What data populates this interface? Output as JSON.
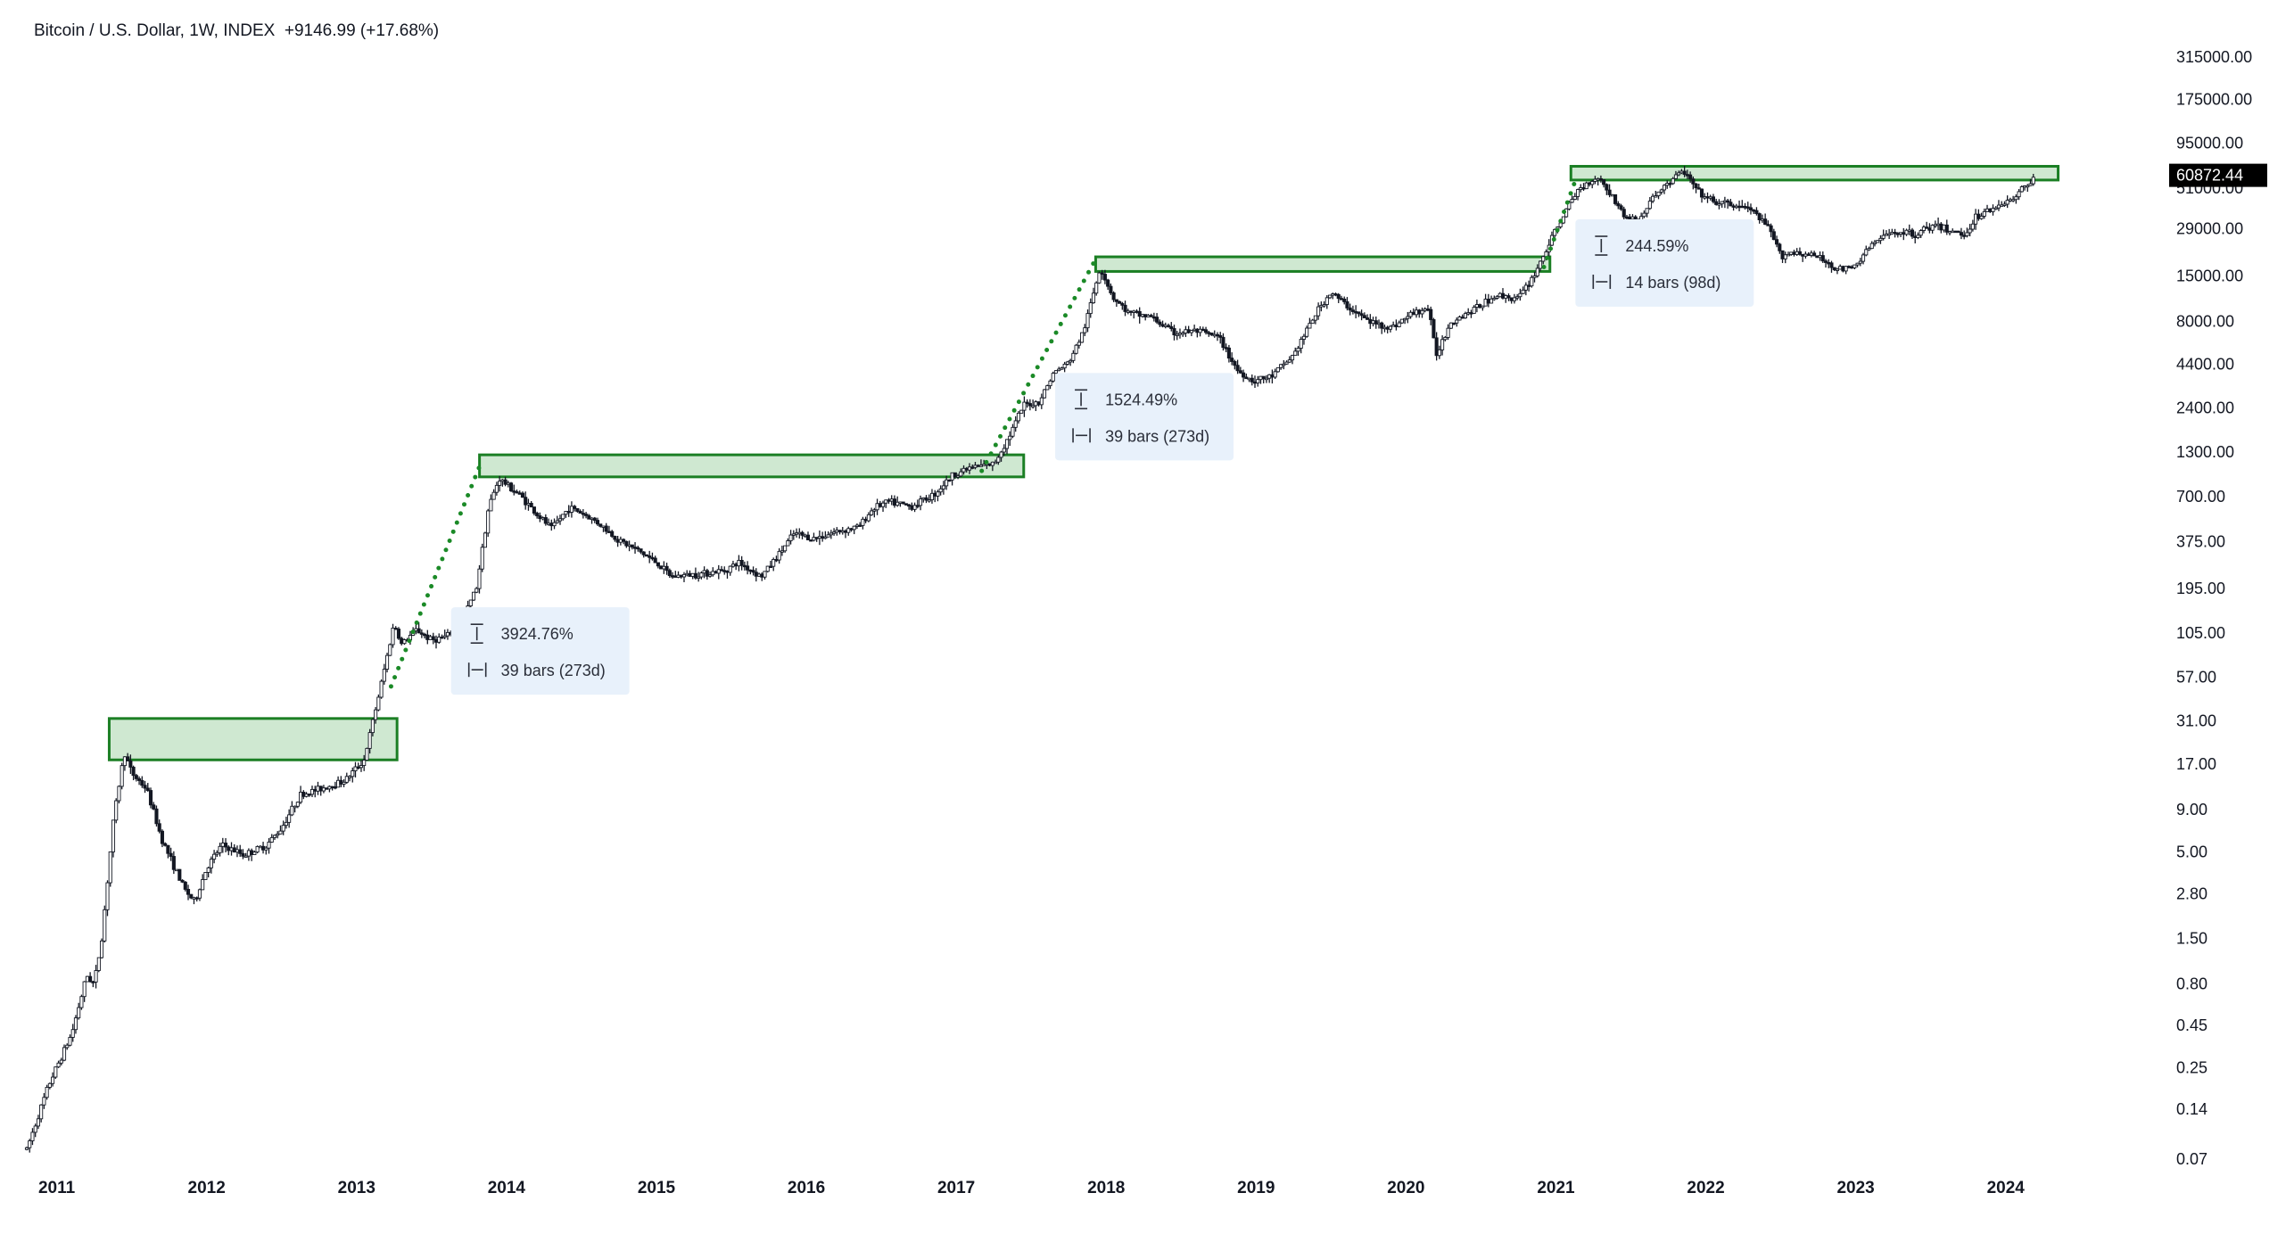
{
  "header": {
    "symbol": "Bitcoin / U.S. Dollar, 1W, INDEX",
    "change": "+9146.99 (+17.68%)"
  },
  "colors": {
    "candle": "#131722",
    "zone_fill": "#cfe8d1",
    "zone_stroke": "#1b7f24",
    "dots": "#1b8a27",
    "annotation_bg": "#e8f1fb",
    "annotation_text": "#2a2e39",
    "axis_text": "#131722",
    "price_tag_bg": "#000000",
    "price_tag_text": "#ffffff"
  },
  "chart_data": {
    "type": "candlestick",
    "scale": "log",
    "grid": false,
    "ylim": [
      0.07,
      315000
    ],
    "xlim": [
      2010.8,
      2024.9
    ],
    "x_ticks": [
      "2011",
      "2012",
      "2013",
      "2014",
      "2015",
      "2016",
      "2017",
      "2018",
      "2019",
      "2020",
      "2021",
      "2022",
      "2023",
      "2024"
    ],
    "y_ticks": [
      "315000.00",
      "175000.00",
      "95000.00",
      "51000.00",
      "29000.00",
      "15000.00",
      "8000.00",
      "4400.00",
      "2400.00",
      "1300.00",
      "700.00",
      "375.00",
      "195.00",
      "105.00",
      "57.00",
      "31.00",
      "17.00",
      "9.00",
      "5.00",
      "2.80",
      "1.50",
      "0.80",
      "0.45",
      "0.25",
      "0.14",
      "0.07"
    ],
    "last_price": "60872.44",
    "price_path": [
      [
        2010.8,
        0.08
      ],
      [
        2010.95,
        0.2
      ],
      [
        2011.1,
        0.4
      ],
      [
        2011.2,
        0.9
      ],
      [
        2011.25,
        0.8
      ],
      [
        2011.3,
        1.5
      ],
      [
        2011.38,
        8
      ],
      [
        2011.45,
        20
      ],
      [
        2011.5,
        15
      ],
      [
        2011.6,
        12
      ],
      [
        2011.7,
        6
      ],
      [
        2011.85,
        3
      ],
      [
        2011.92,
        2.5
      ],
      [
        2012.0,
        4
      ],
      [
        2012.1,
        5.5
      ],
      [
        2012.25,
        4.8
      ],
      [
        2012.4,
        5.5
      ],
      [
        2012.5,
        7
      ],
      [
        2012.62,
        11
      ],
      [
        2012.75,
        12
      ],
      [
        2012.92,
        13.5
      ],
      [
        2013.05,
        18
      ],
      [
        2013.15,
        45
      ],
      [
        2013.25,
        120
      ],
      [
        2013.3,
        90
      ],
      [
        2013.4,
        110
      ],
      [
        2013.5,
        95
      ],
      [
        2013.6,
        100
      ],
      [
        2013.7,
        120
      ],
      [
        2013.8,
        200
      ],
      [
        2013.88,
        600
      ],
      [
        2013.95,
        900
      ],
      [
        2014.1,
        700
      ],
      [
        2014.2,
        550
      ],
      [
        2014.3,
        450
      ],
      [
        2014.42,
        600
      ],
      [
        2014.5,
        560
      ],
      [
        2014.62,
        480
      ],
      [
        2014.75,
        380
      ],
      [
        2014.88,
        330
      ],
      [
        2015.0,
        280
      ],
      [
        2015.1,
        230
      ],
      [
        2015.3,
        240
      ],
      [
        2015.45,
        250
      ],
      [
        2015.55,
        280
      ],
      [
        2015.7,
        230
      ],
      [
        2015.8,
        300
      ],
      [
        2015.92,
        420
      ],
      [
        2016.05,
        390
      ],
      [
        2016.2,
        430
      ],
      [
        2016.35,
        460
      ],
      [
        2016.45,
        600
      ],
      [
        2016.55,
        650
      ],
      [
        2016.7,
        610
      ],
      [
        2016.85,
        720
      ],
      [
        2016.98,
        950
      ],
      [
        2017.1,
        1050
      ],
      [
        2017.25,
        1100
      ],
      [
        2017.35,
        1600
      ],
      [
        2017.45,
        2500
      ],
      [
        2017.55,
        2600
      ],
      [
        2017.65,
        3900
      ],
      [
        2017.75,
        4500
      ],
      [
        2017.85,
        7000
      ],
      [
        2017.96,
        17000
      ],
      [
        2018.05,
        11000
      ],
      [
        2018.15,
        9000
      ],
      [
        2018.3,
        8500
      ],
      [
        2018.45,
        6800
      ],
      [
        2018.6,
        7000
      ],
      [
        2018.75,
        6400
      ],
      [
        2018.88,
        4000
      ],
      [
        2018.98,
        3500
      ],
      [
        2019.1,
        3700
      ],
      [
        2019.25,
        5000
      ],
      [
        2019.4,
        9000
      ],
      [
        2019.5,
        12000
      ],
      [
        2019.6,
        10000
      ],
      [
        2019.75,
        8000
      ],
      [
        2019.9,
        7300
      ],
      [
        2020.05,
        9000
      ],
      [
        2020.15,
        9600
      ],
      [
        2020.2,
        5000
      ],
      [
        2020.3,
        8000
      ],
      [
        2020.45,
        9400
      ],
      [
        2020.6,
        11500
      ],
      [
        2020.75,
        11000
      ],
      [
        2020.85,
        15000
      ],
      [
        2020.95,
        23000
      ],
      [
        2021.05,
        35000
      ],
      [
        2021.15,
        50000
      ],
      [
        2021.28,
        60000
      ],
      [
        2021.38,
        45000
      ],
      [
        2021.45,
        35000
      ],
      [
        2021.55,
        32000
      ],
      [
        2021.65,
        45000
      ],
      [
        2021.75,
        55000
      ],
      [
        2021.85,
        65000
      ],
      [
        2021.95,
        48000
      ],
      [
        2022.05,
        42000
      ],
      [
        2022.2,
        40000
      ],
      [
        2022.3,
        38000
      ],
      [
        2022.42,
        29000
      ],
      [
        2022.5,
        20000
      ],
      [
        2022.6,
        21000
      ],
      [
        2022.75,
        19500
      ],
      [
        2022.88,
        16500
      ],
      [
        2022.98,
        16600
      ],
      [
        2023.1,
        23000
      ],
      [
        2023.25,
        28000
      ],
      [
        2023.4,
        27000
      ],
      [
        2023.5,
        30000
      ],
      [
        2023.6,
        29000
      ],
      [
        2023.72,
        26500
      ],
      [
        2023.8,
        34000
      ],
      [
        2023.9,
        38000
      ],
      [
        2023.98,
        42000
      ],
      [
        2024.05,
        43000
      ],
      [
        2024.12,
        52000
      ],
      [
        2024.2,
        60872
      ]
    ],
    "zones": [
      {
        "x0": 2011.35,
        "x1": 2013.27,
        "y0": 18,
        "y1": 32
      },
      {
        "x0": 2013.82,
        "x1": 2017.45,
        "y0": 920,
        "y1": 1250
      },
      {
        "x0": 2017.93,
        "x1": 2020.96,
        "y0": 16000,
        "y1": 19600
      },
      {
        "x0": 2021.1,
        "x1": 2024.35,
        "y0": 57000,
        "y1": 69000
      }
    ],
    "dotted_lines": [
      {
        "x0": 2013.23,
        "y0": 50,
        "x1": 2013.84,
        "y1": 1180
      },
      {
        "x0": 2017.17,
        "y0": 1000,
        "x1": 2017.93,
        "y1": 19000
      },
      {
        "x0": 2020.92,
        "y0": 17000,
        "x1": 2021.14,
        "y1": 60000
      }
    ],
    "annotations": [
      {
        "x": 2013.63,
        "y": 150,
        "pct": "3924.76%",
        "bars": "39 bars (273d)"
      },
      {
        "x": 2017.66,
        "y": 3900,
        "pct": "1524.49%",
        "bars": "39 bars (273d)"
      },
      {
        "x": 2021.13,
        "y": 33000,
        "pct": "244.59%",
        "bars": "14 bars (98d)"
      }
    ]
  }
}
